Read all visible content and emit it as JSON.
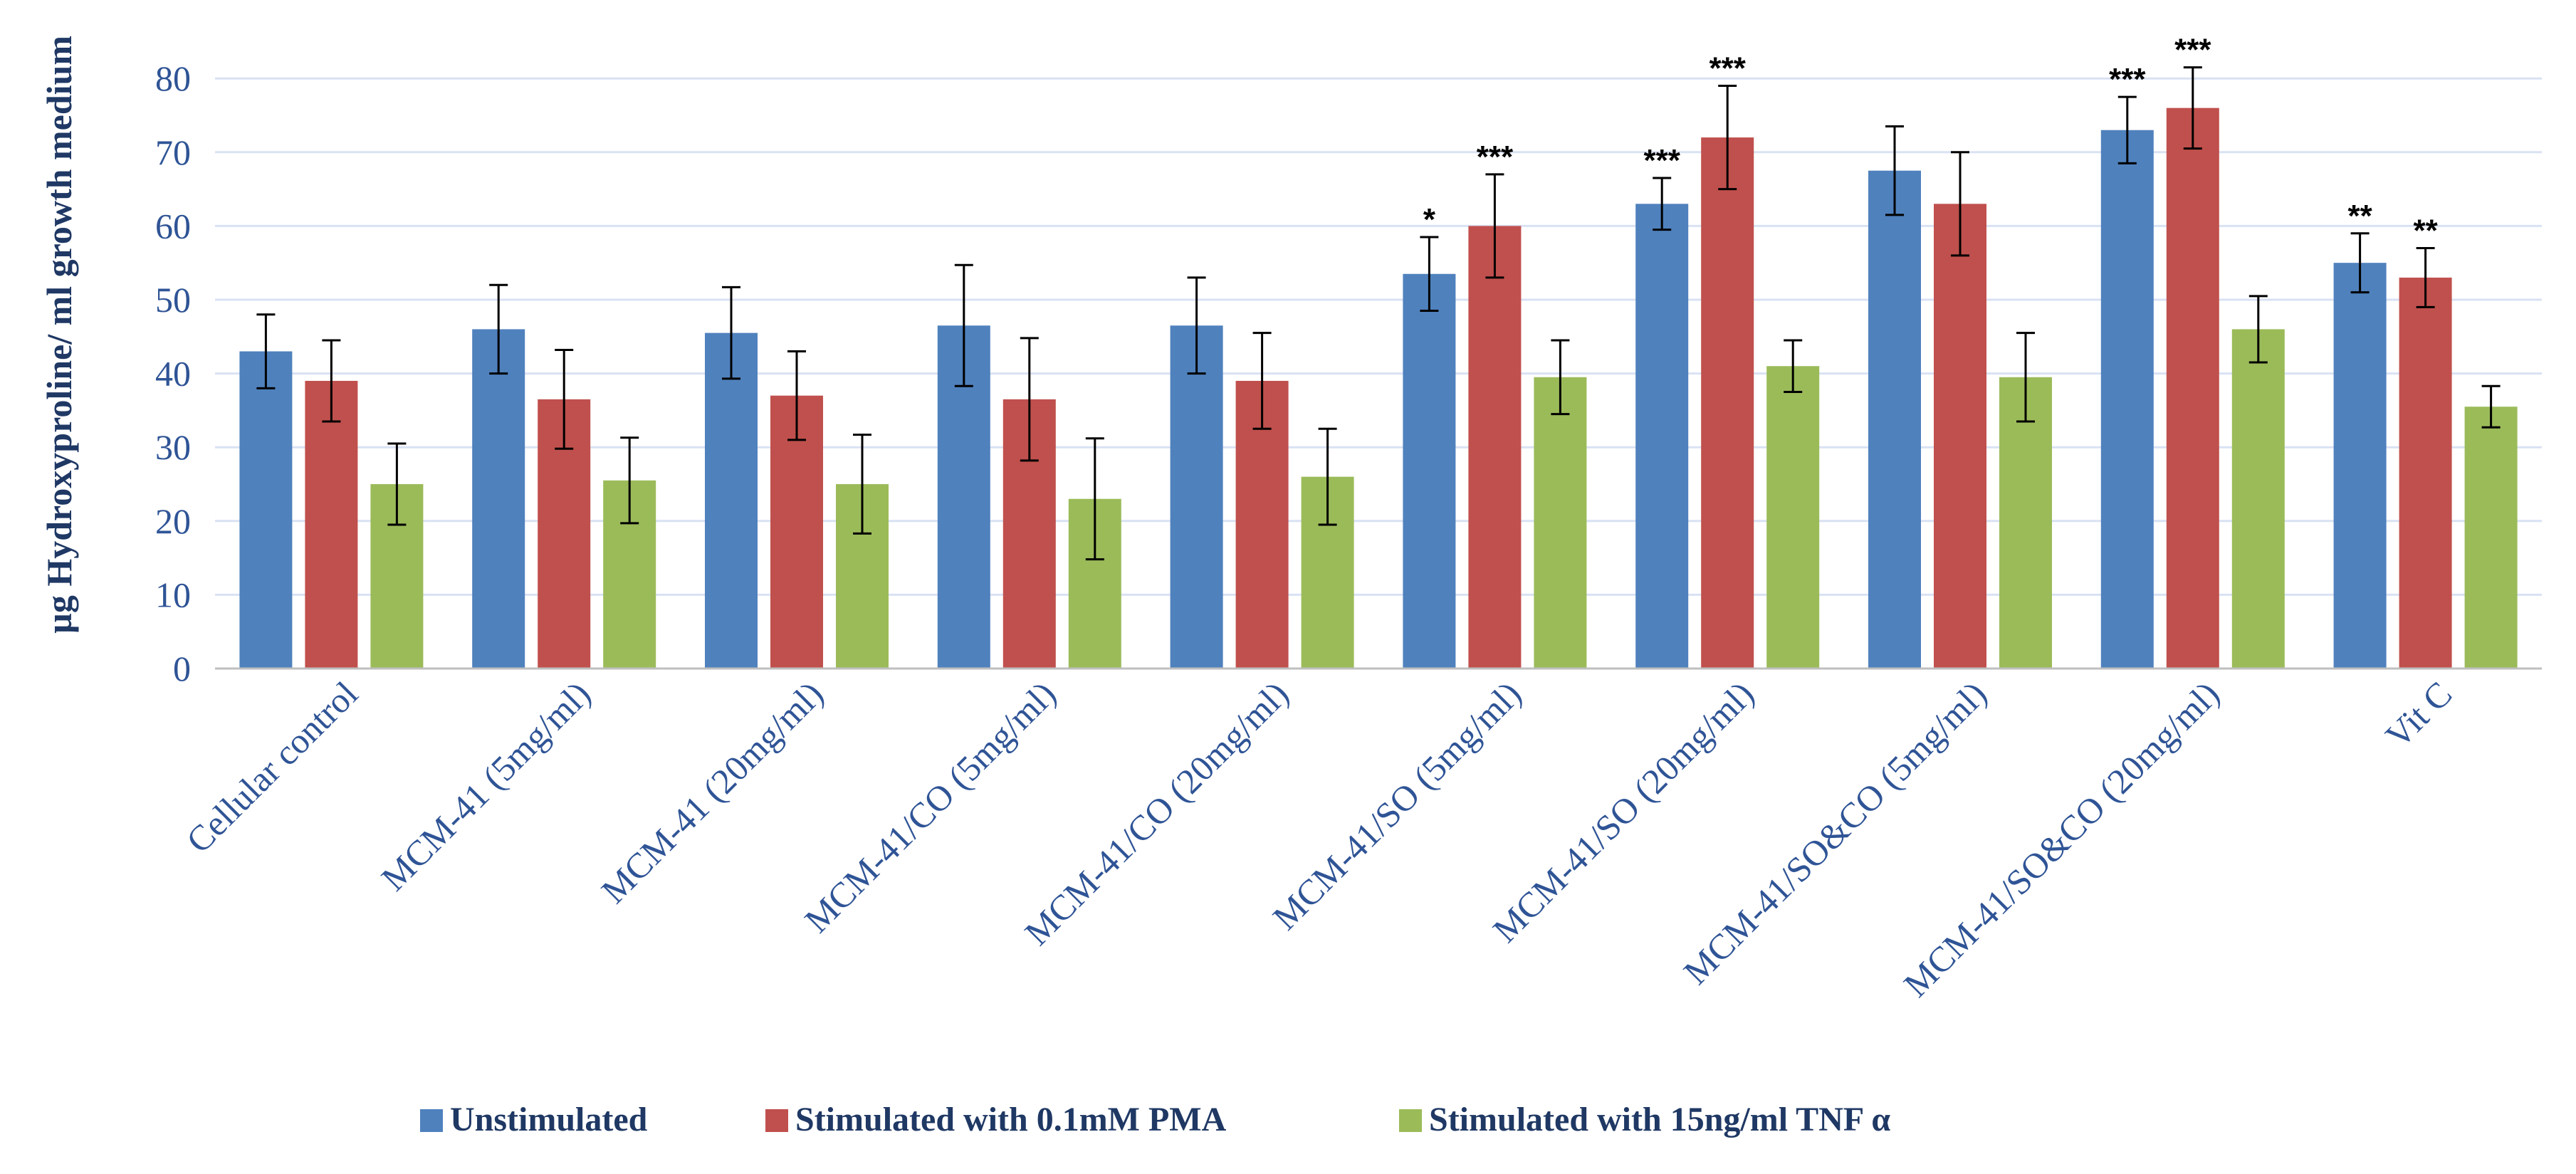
{
  "chart_data": {
    "type": "bar",
    "title": "",
    "xlabel": "",
    "ylabel": "µg Hydroxyproline/ ml growth medium",
    "ylim": [
      0,
      85
    ],
    "yticks": [
      0,
      10,
      20,
      30,
      40,
      50,
      60,
      70,
      80
    ],
    "grid": true,
    "legend_position": "bottom",
    "categories": [
      "Cellular control",
      "MCM-41 (5mg/ml)",
      "MCM-41 (20mg/ml)",
      "MCM-41/CO (5mg/ml)",
      "MCM-41/CO (20mg/ml)",
      "MCM-41/SO (5mg/ml)",
      "MCM-41/SO (20mg/ml)",
      "MCM-41/SO&CO (5mg/ml)",
      "MCM-41/SO&CO (20mg/ml)",
      "Vit C"
    ],
    "series": [
      {
        "name": "Unstimulated",
        "color": "#4F81BD",
        "values": [
          43,
          46,
          45.5,
          46.5,
          46.5,
          53.5,
          63,
          67.5,
          73,
          55
        ],
        "errors": [
          5,
          6,
          6.2,
          8.2,
          6.5,
          5,
          3.5,
          6,
          4.5,
          4
        ],
        "significance": [
          "",
          "",
          "",
          "",
          "",
          "*",
          "***",
          "",
          "***",
          "**"
        ]
      },
      {
        "name": "Stimulated with 0.1mM PMA",
        "color": "#C0504D",
        "values": [
          39,
          36.5,
          37,
          36.5,
          39,
          60,
          72,
          63,
          76,
          53
        ],
        "errors": [
          5.5,
          6.7,
          6,
          8.3,
          6.5,
          7,
          7,
          7,
          5.5,
          4
        ],
        "significance": [
          "",
          "",
          "",
          "",
          "",
          "***",
          "***",
          "",
          "***",
          "**"
        ]
      },
      {
        "name": "Stimulated with 15ng/ml TNF α",
        "color": "#9BBB59",
        "values": [
          25,
          25.5,
          25,
          23,
          26,
          39.5,
          41,
          39.5,
          46,
          35.5
        ],
        "errors": [
          5.5,
          5.8,
          6.7,
          8.2,
          6.5,
          5,
          3.5,
          6,
          4.5,
          2.8
        ],
        "significance": [
          "",
          "",
          "",
          "",
          "",
          "",
          "",
          "",
          "",
          ""
        ]
      }
    ]
  }
}
